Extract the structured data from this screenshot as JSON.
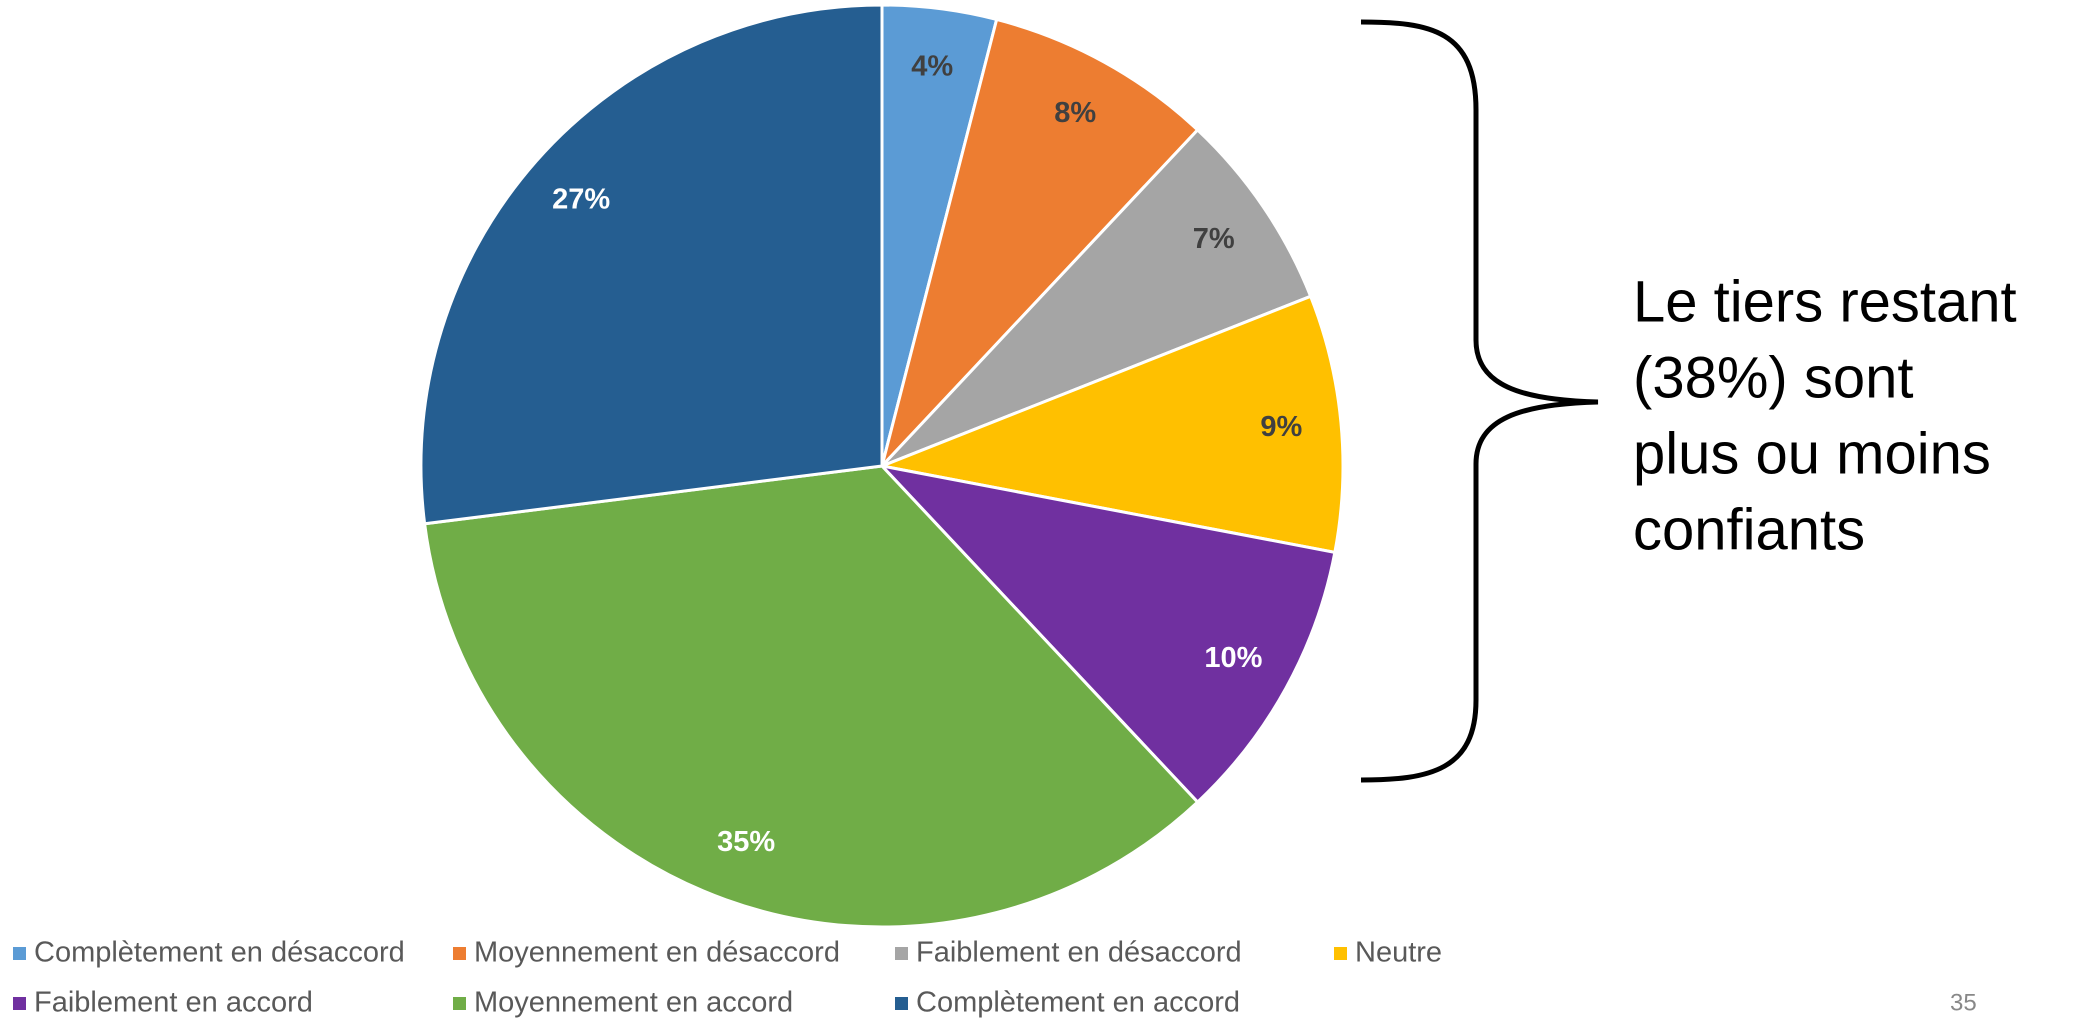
{
  "chart_data": {
    "type": "pie",
    "categories": [
      "Complètement en désaccord",
      "Moyennement en désaccord",
      "Faiblement en désaccord",
      "Neutre",
      "Faiblement en accord",
      "Moyennement en accord",
      "Complètement en accord"
    ],
    "values": [
      4,
      8,
      7,
      9,
      10,
      35,
      27
    ],
    "value_labels": [
      "4%",
      "8%",
      "7%",
      "9%",
      "10%",
      "35%",
      "27%"
    ],
    "colors": [
      "#5b9bd5",
      "#ed7d31",
      "#a5a5a5",
      "#ffc000",
      "#7030a0",
      "#70ad47",
      "#255e91"
    ],
    "label_colors": [
      "#404040",
      "#404040",
      "#404040",
      "#404040",
      "#ffffff",
      "#ffffff",
      "#ffffff"
    ],
    "annotation": [
      "Le tiers restant",
      "(38%) sont",
      "plus ou moins",
      "confiants"
    ],
    "legend": "bottom"
  },
  "page_number": "35"
}
